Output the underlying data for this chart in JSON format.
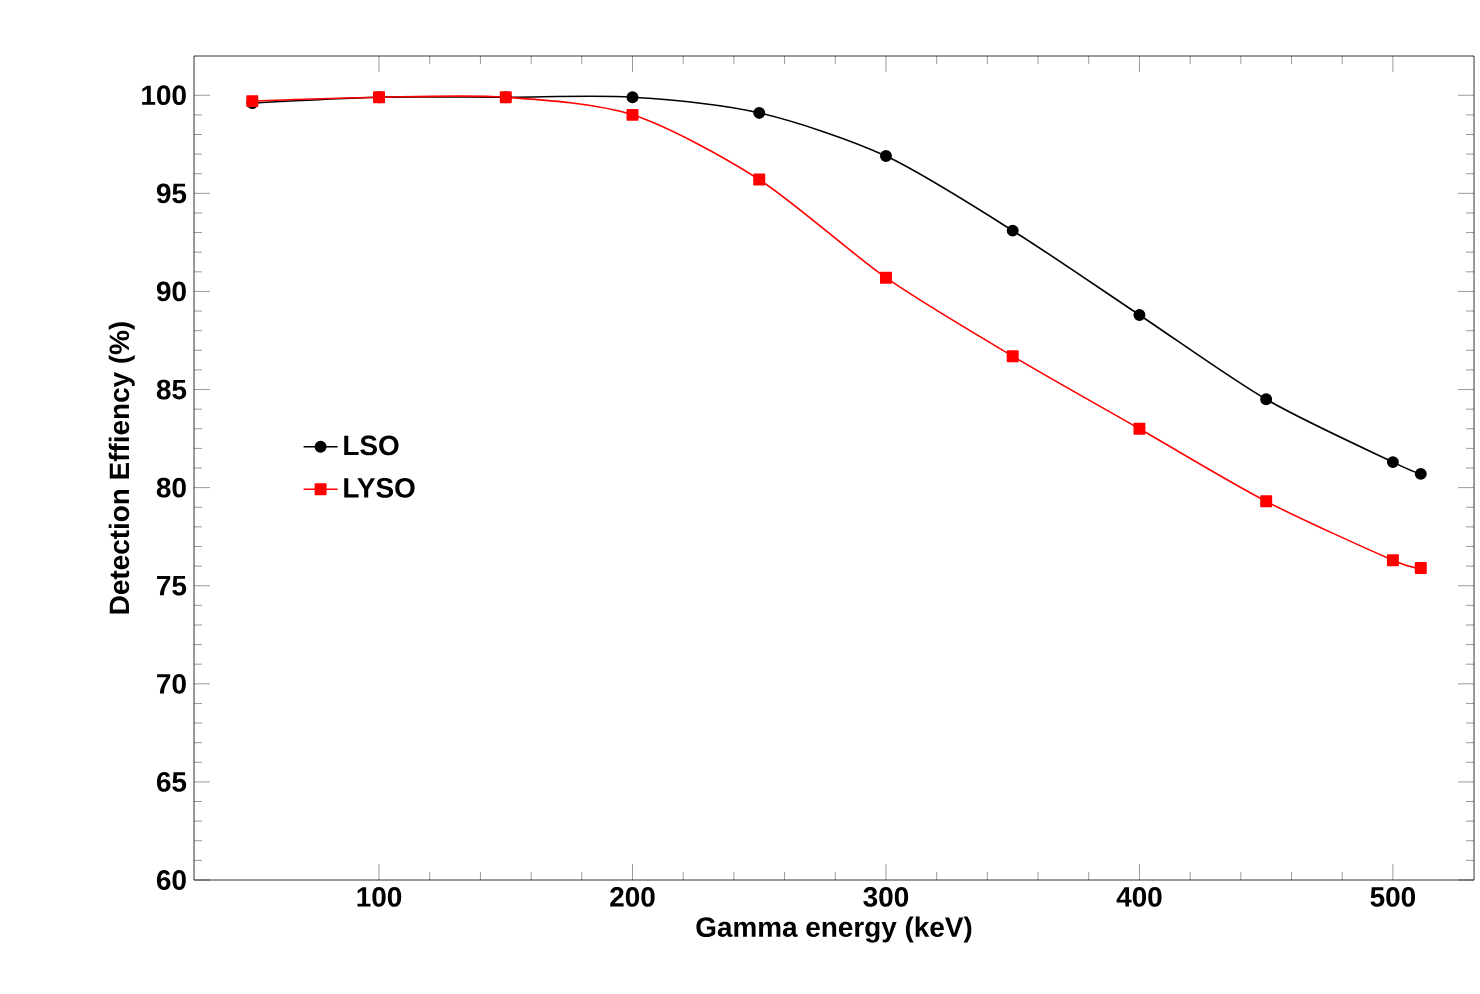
{
  "chart_data": {
    "type": "line",
    "xlabel": "Gamma energy (keV)",
    "ylabel": "Detection Effiency (%)",
    "x": [
      50,
      100,
      150,
      200,
      250,
      300,
      350,
      400,
      450,
      500,
      511
    ],
    "series": [
      {
        "name": "LSO",
        "color": "#000000",
        "marker": "circle",
        "values": [
          99.6,
          99.9,
          99.9,
          99.9,
          99.1,
          96.9,
          93.1,
          88.8,
          84.5,
          81.3,
          80.7
        ]
      },
      {
        "name": "LYSO",
        "color": "#ff0000",
        "marker": "square",
        "values": [
          99.7,
          99.9,
          99.9,
          99.0,
          95.7,
          90.7,
          86.7,
          83.0,
          79.3,
          76.3,
          75.9
        ]
      }
    ],
    "xlim": [
      27,
      532
    ],
    "ylim": [
      60,
      102
    ],
    "xticks": [
      100,
      200,
      300,
      400,
      500
    ],
    "yticks": [
      60,
      65,
      70,
      75,
      80,
      85,
      90,
      95,
      100
    ],
    "legend": "left",
    "grid": false
  }
}
